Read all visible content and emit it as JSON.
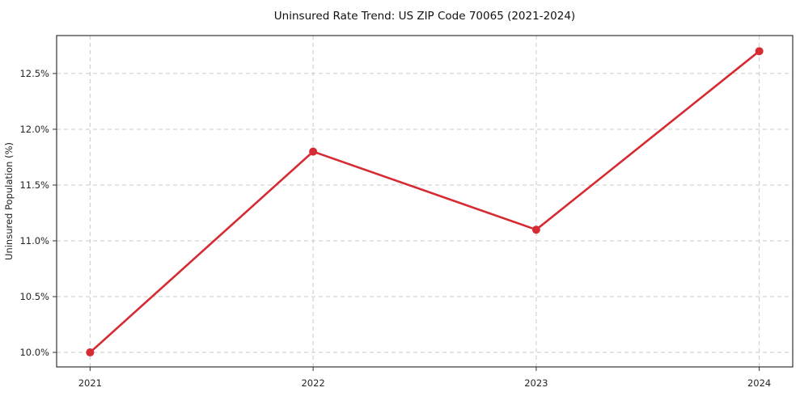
{
  "chart_data": {
    "type": "line",
    "title": "Uninsured Rate Trend: US ZIP Code 70065 (2021-2024)",
    "xlabel": "",
    "ylabel": "Uninsured Population (%)",
    "x": [
      2021,
      2022,
      2023,
      2024
    ],
    "values": [
      10.0,
      11.8,
      11.1,
      12.7
    ],
    "xlim": [
      2020.85,
      2024.15
    ],
    "ylim": [
      9.87,
      12.84
    ],
    "xticks": {
      "values": [
        2021,
        2022,
        2023,
        2024
      ],
      "labels": [
        "2021",
        "2022",
        "2023",
        "2024"
      ]
    },
    "yticks": {
      "values": [
        10.0,
        10.5,
        11.0,
        11.5,
        12.0,
        12.5
      ],
      "labels": [
        "10.0%",
        "10.5%",
        "11.0%",
        "11.5%",
        "12.0%",
        "12.5%"
      ]
    },
    "grid": {
      "visible": true,
      "style": "dashed",
      "color": "#c9c9c9"
    },
    "legend": null,
    "colors": {
      "line": "#d62b33",
      "marker": "#d62b33",
      "spine": "#333333",
      "tick_text": "#262626",
      "background": "#ffffff"
    },
    "marker": "circle"
  }
}
